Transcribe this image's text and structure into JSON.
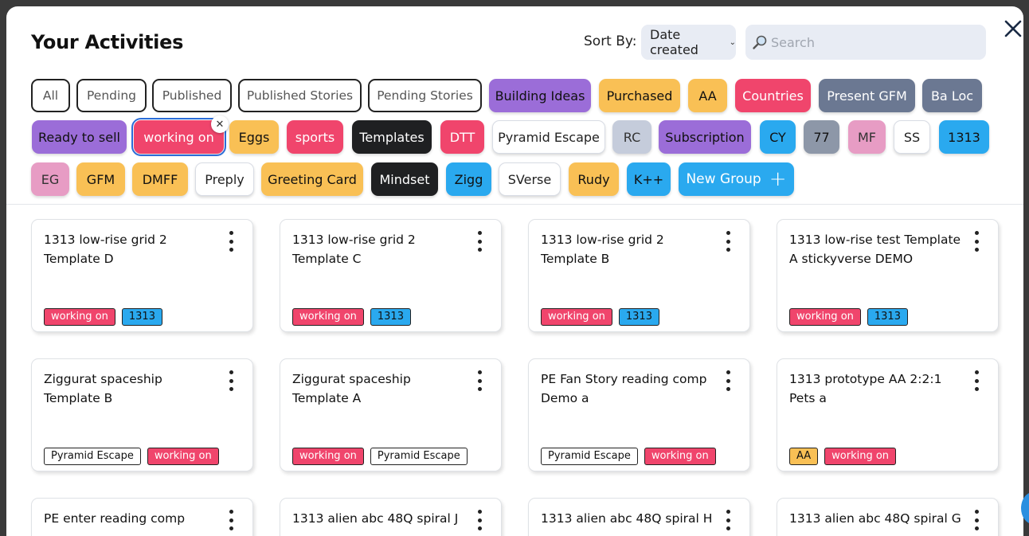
{
  "header": {
    "title": "Your Activities",
    "sort_label": "Sort By:",
    "sort_value": "Date created",
    "search_placeholder": "Search"
  },
  "filters": [
    {
      "label": "All",
      "style": "outline"
    },
    {
      "label": "Pending",
      "style": "outline"
    },
    {
      "label": "Published",
      "style": "outline"
    },
    {
      "label": "Published Stories",
      "style": "outline"
    },
    {
      "label": "Pending Stories",
      "style": "outline"
    },
    {
      "label": "Building Ideas",
      "bg": "#9b6dd8",
      "fg": "#111"
    },
    {
      "label": "Purchased",
      "bg": "#f9c055",
      "fg": "#111"
    },
    {
      "label": "AA",
      "bg": "#f9c055",
      "fg": "#111"
    },
    {
      "label": "Countries",
      "bg": "#f0456c",
      "fg": "#ffffff"
    },
    {
      "label": "Present GFM",
      "bg": "#6b7892",
      "fg": "#ffffff"
    },
    {
      "label": "Ba Loc",
      "bg": "#6b7892",
      "fg": "#ffffff"
    },
    {
      "label": "Ready to sell",
      "bg": "#9b6dd8",
      "fg": "#111"
    },
    {
      "label": "working on",
      "bg": "#f0456c",
      "fg": "#ffffff",
      "selected": true
    },
    {
      "label": "Eggs",
      "bg": "#f9c055",
      "fg": "#111"
    },
    {
      "label": "sports",
      "bg": "#f0456c",
      "fg": "#ffffff"
    },
    {
      "label": "Templates",
      "bg": "#1f2022",
      "fg": "#ffffff"
    },
    {
      "label": "DTT",
      "bg": "#f0456c",
      "fg": "#ffffff"
    },
    {
      "label": "Pyramid Escape",
      "style": "outline-light"
    },
    {
      "label": "RC",
      "bg": "#c5ccdb",
      "fg": "#333"
    },
    {
      "label": "Subscription",
      "bg": "#9b6dd8",
      "fg": "#111"
    },
    {
      "label": "CY",
      "bg": "#2aa9ef",
      "fg": "#111"
    },
    {
      "label": "77",
      "bg": "#8d97a8",
      "fg": "#111"
    },
    {
      "label": "MF",
      "bg": "#e79cc4",
      "fg": "#333"
    },
    {
      "label": "SS",
      "style": "outline-light"
    },
    {
      "label": "1313",
      "bg": "#2aa9ef",
      "fg": "#111"
    },
    {
      "label": "EG",
      "bg": "#e79cc4",
      "fg": "#333"
    },
    {
      "label": "GFM",
      "bg": "#f9c055",
      "fg": "#111"
    },
    {
      "label": "DMFF",
      "bg": "#f9c055",
      "fg": "#111"
    },
    {
      "label": "Preply",
      "style": "outline-light"
    },
    {
      "label": "Greeting Card",
      "bg": "#f9c055",
      "fg": "#111"
    },
    {
      "label": "Mindset",
      "bg": "#1f2022",
      "fg": "#ffffff"
    },
    {
      "label": "Zigg",
      "bg": "#2aa9ef",
      "fg": "#111"
    },
    {
      "label": "SVerse",
      "style": "outline-light"
    },
    {
      "label": "Rudy",
      "bg": "#f9c055",
      "fg": "#111"
    },
    {
      "label": "K++",
      "bg": "#2aa9ef",
      "fg": "#111"
    }
  ],
  "new_group": {
    "label": "New Group",
    "bg": "#2aa9ef"
  },
  "tag_colors": {
    "working on": {
      "bg": "#f0456c",
      "fg": "#ffffff"
    },
    "1313": {
      "bg": "#2aa9ef",
      "fg": "#111"
    },
    "Pyramid Escape": {
      "bg": "#ffffff",
      "fg": "#111"
    },
    "AA": {
      "bg": "#f9c055",
      "fg": "#111"
    }
  },
  "cards": [
    {
      "title": "1313 low-rise grid 2 Template D",
      "tags": [
        "working on",
        "1313"
      ]
    },
    {
      "title": "1313 low-rise grid 2 Template C",
      "tags": [
        "working on",
        "1313"
      ]
    },
    {
      "title": "1313 low-rise grid 2 Template B",
      "tags": [
        "working on",
        "1313"
      ]
    },
    {
      "title": "1313 low-rise test Template A stickyverse DEMO",
      "tags": [
        "working on",
        "1313"
      ]
    },
    {
      "title": "Ziggurat spaceship Template B",
      "tags": [
        "Pyramid Escape",
        "working on"
      ]
    },
    {
      "title": "Ziggurat spaceship Template A",
      "tags": [
        "working on",
        "Pyramid Escape"
      ]
    },
    {
      "title": "PE Fan Story reading comp Demo a",
      "tags": [
        "Pyramid Escape",
        "working on"
      ]
    },
    {
      "title": "1313 prototype AA 2:2:1 Pets a",
      "tags": [
        "AA",
        "working on"
      ]
    },
    {
      "title": "PE enter reading comp",
      "tags": []
    },
    {
      "title": "1313 alien abc 48Q spiral J",
      "tags": []
    },
    {
      "title": "1313 alien abc 48Q spiral H",
      "tags": []
    },
    {
      "title": "1313 alien abc 48Q spiral G",
      "tags": []
    }
  ]
}
